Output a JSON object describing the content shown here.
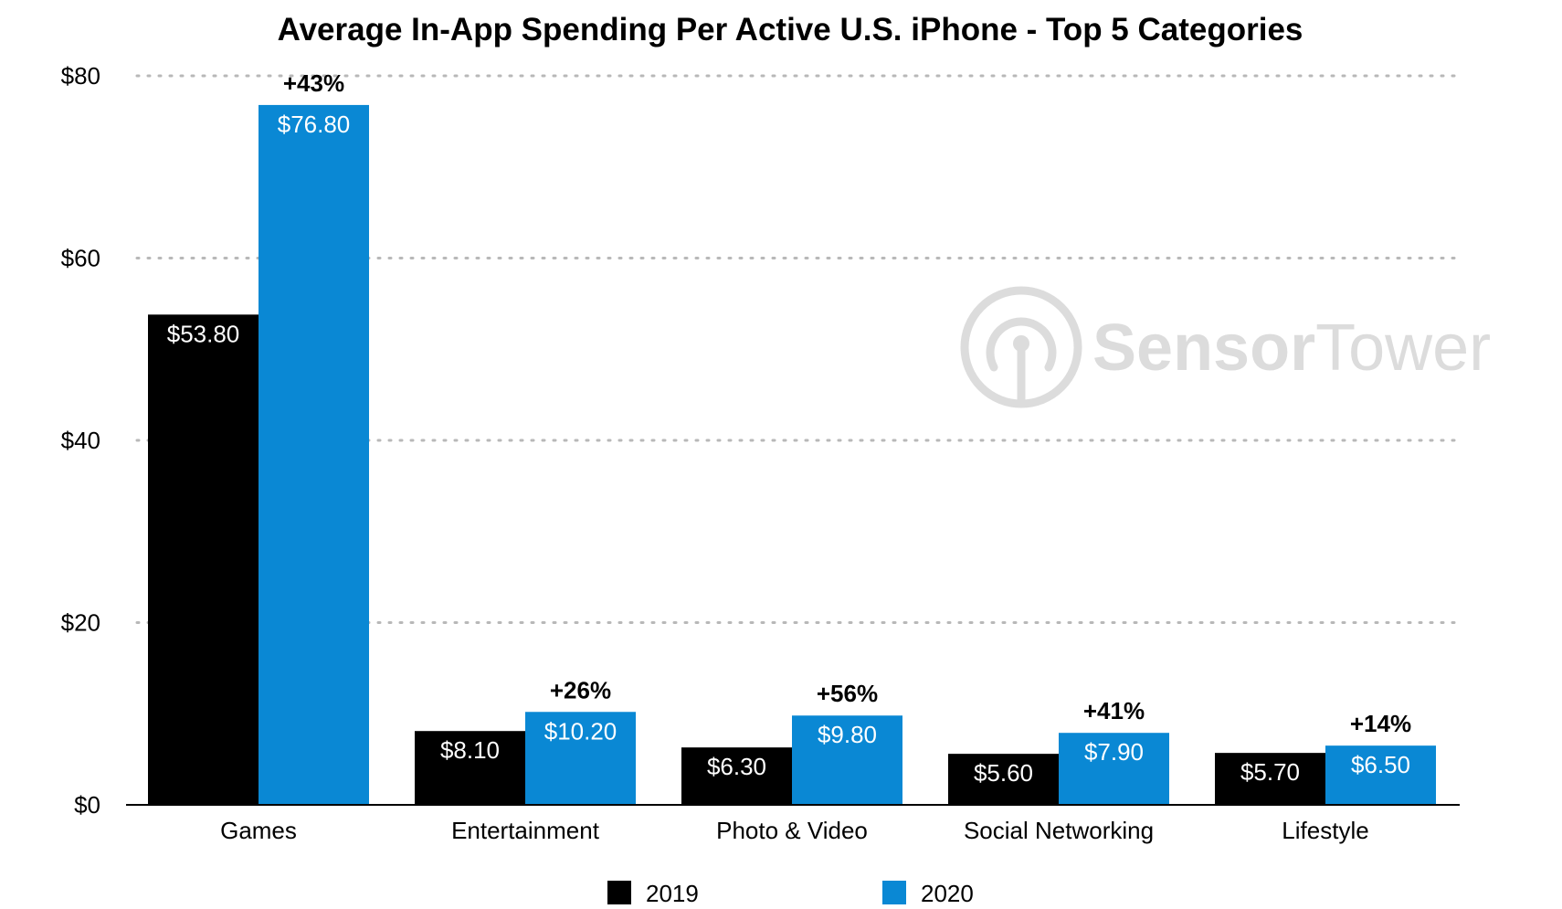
{
  "chart_data": {
    "type": "bar",
    "title": "Average In-App Spending Per Active U.S. iPhone - Top 5 Categories",
    "xlabel": "",
    "ylabel": "",
    "categories": [
      "Games",
      "Entertainment",
      "Photo & Video",
      "Social Networking",
      "Lifestyle"
    ],
    "series": [
      {
        "name": "2019",
        "color": "#000000",
        "values": [
          53.8,
          8.1,
          6.3,
          5.6,
          5.7
        ],
        "labels": [
          "$53.80",
          "$8.10",
          "$6.30",
          "$5.60",
          "$5.70"
        ]
      },
      {
        "name": "2020",
        "color": "#0a88d4",
        "values": [
          76.8,
          10.2,
          9.8,
          7.9,
          6.5
        ],
        "labels": [
          "$76.80",
          "$10.20",
          "$9.80",
          "$7.90",
          "$6.50"
        ]
      }
    ],
    "growth_labels": [
      "+43%",
      "+26%",
      "+56%",
      "+41%",
      "+14%"
    ],
    "ylim": [
      0,
      80
    ],
    "yticks": [
      0,
      20,
      40,
      60,
      80
    ],
    "ytick_labels": [
      "$0",
      "$20",
      "$40",
      "$60",
      "$80"
    ],
    "grid": "dotted horizontal",
    "legend": "bottom-center"
  },
  "watermark": {
    "brand_bold": "Sensor",
    "brand_light": "Tower",
    "icon": "sensortower-logo-icon"
  }
}
